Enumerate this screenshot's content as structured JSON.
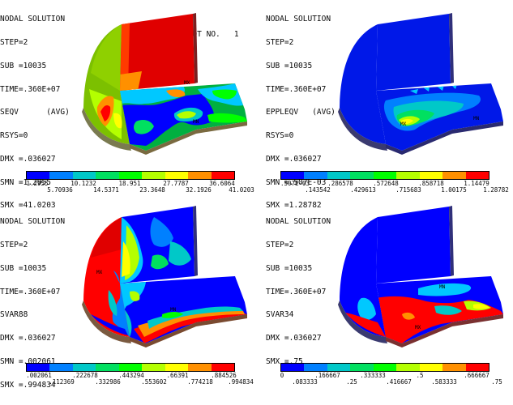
{
  "colors": [
    "#0000ff",
    "#0080ff",
    "#00c8c8",
    "#00e060",
    "#00ff00",
    "#b4ff00",
    "#ffff00",
    "#ff9000",
    "#ff0000"
  ],
  "panels": [
    {
      "id": "seqv",
      "lines": [
        "NODAL SOLUTION",
        "STEP=2",
        "SUB =10035",
        "TIME=.360E+07",
        "SEQV      (AVG)",
        "RSYS=0",
        "DMX =.036027",
        "SMN =1.2955",
        "SMX =41.0203"
      ],
      "plot_no": "PLOT NO.   1",
      "min_label": "MN",
      "max_label": "MX",
      "legend_top": [
        "1.2955",
        "10.1232",
        "18.951",
        "27.7787",
        "36.6064"
      ],
      "legend_bottom": [
        "5.70936",
        "14.5371",
        "23.3648",
        "32.1926",
        "41.0203"
      ]
    },
    {
      "id": "epeqv",
      "lines": [
        "NODAL SOLUTION",
        "STEP=2",
        "SUB =10035",
        "TIME=.360E+07",
        "EPPLEQV   (AVG)",
        "RSYS=0",
        "DMX =.036027",
        "SMN =.507E-03",
        "SMX =1.28782"
      ],
      "plot_no": "",
      "min_label": "MN",
      "max_label": "MX",
      "legend_top": [
        ".507E-03",
        ".286578",
        ".572648",
        ".858718",
        "1.14479"
      ],
      "legend_bottom": [
        ".143542",
        ".429613",
        ".715683",
        "1.00175",
        "1.28782"
      ]
    },
    {
      "id": "svar88",
      "lines": [
        "NODAL SOLUTION",
        "STEP=2",
        "SUB =10035",
        "TIME=.360E+07",
        "SVAR88",
        "DMX =.036027",
        "SMN =.002061",
        "SMX =.994834"
      ],
      "plot_no": "",
      "min_label": "MN",
      "max_label": "MX",
      "legend_top": [
        ".002061",
        ".222678",
        ".443294",
        ".66391",
        ".884526"
      ],
      "legend_bottom": [
        ".112369",
        ".332986",
        ".553602",
        ".774218",
        ".994834"
      ]
    },
    {
      "id": "svar34",
      "lines": [
        "NODAL SOLUTION",
        "STEP=2",
        "SUB =10035",
        "TIME=.360E+07",
        "SVAR34",
        "DMX =.036027",
        "SMX =.75"
      ],
      "plot_no": "",
      "min_label": "MN",
      "max_label": "MX",
      "legend_top": [
        "0",
        ".166667",
        ".333333",
        ".5",
        ".666667"
      ],
      "legend_bottom": [
        ".083333",
        ".25",
        ".416667",
        ".583333",
        ".75"
      ]
    }
  ]
}
